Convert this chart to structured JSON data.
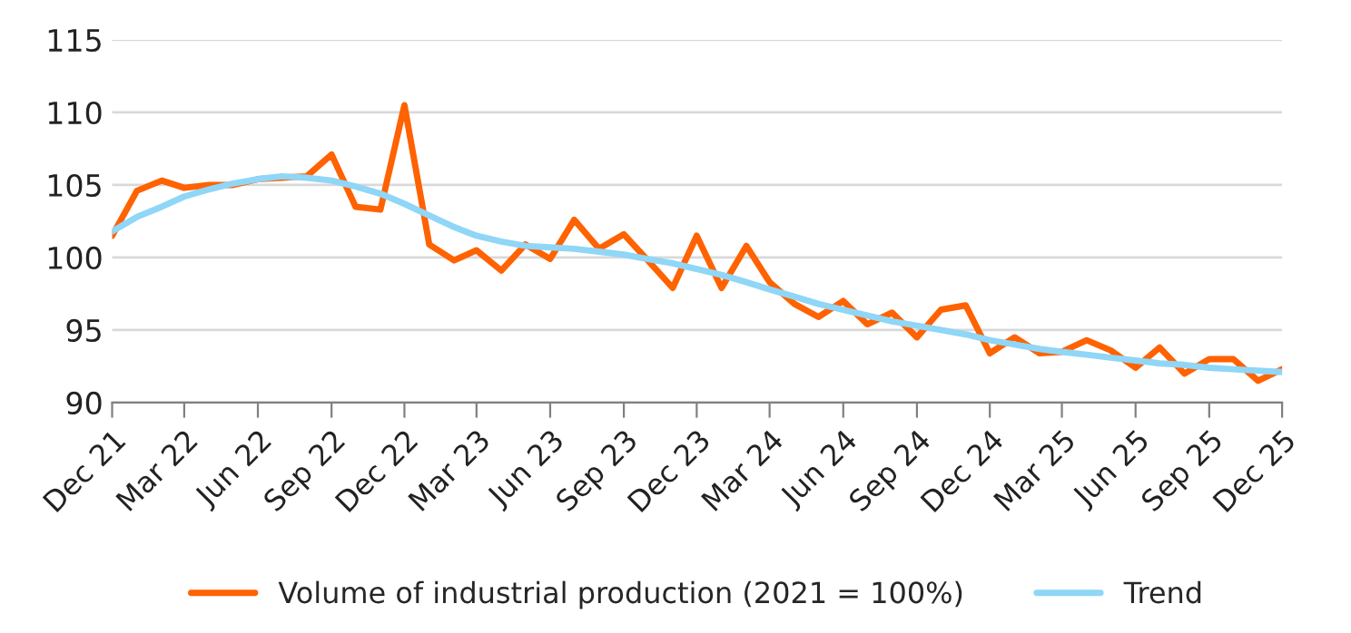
{
  "chart_data": {
    "type": "line",
    "x": [
      "2021-12",
      "2022-01",
      "2022-02",
      "2022-03",
      "2022-04",
      "2022-05",
      "2022-06",
      "2022-07",
      "2022-08",
      "2022-09",
      "2022-10",
      "2022-11",
      "2022-12",
      "2023-01",
      "2023-02",
      "2023-03",
      "2023-04",
      "2023-05",
      "2023-06",
      "2023-07",
      "2023-08",
      "2023-09",
      "2023-10",
      "2023-11",
      "2023-12",
      "2024-01",
      "2024-02",
      "2024-03",
      "2024-04",
      "2024-05",
      "2024-06",
      "2024-07",
      "2024-08",
      "2024-09",
      "2024-10",
      "2024-11",
      "2024-12",
      "2025-01",
      "2025-02",
      "2025-03",
      "2025-04",
      "2025-05",
      "2025-06",
      "2025-07",
      "2025-08",
      "2025-09",
      "2025-10",
      "2025-11",
      "2025-12"
    ],
    "series": [
      {
        "name": "Volume of industrial production (2021 = 100%)",
        "color": "#ff6200",
        "values": [
          101.5,
          104.6,
          105.3,
          104.8,
          105.0,
          105.0,
          105.4,
          105.5,
          105.6,
          107.1,
          103.5,
          103.3,
          110.5,
          100.9,
          99.8,
          100.5,
          99.1,
          100.9,
          99.9,
          102.6,
          100.6,
          101.6,
          99.8,
          97.9,
          101.5,
          97.9,
          100.8,
          98.3,
          96.8,
          95.9,
          97.0,
          95.4,
          96.2,
          94.5,
          96.4,
          96.7,
          93.4,
          94.5,
          93.4,
          93.5,
          94.3,
          93.6,
          92.4,
          93.8,
          92.0,
          93.0,
          93.0,
          91.5,
          92.3
        ]
      },
      {
        "name": "Trend",
        "color": "#8fd6f7",
        "values": [
          101.8,
          102.8,
          103.5,
          104.2,
          104.7,
          105.1,
          105.4,
          105.6,
          105.5,
          105.3,
          104.9,
          104.4,
          103.7,
          102.9,
          102.1,
          101.5,
          101.1,
          100.8,
          100.7,
          100.6,
          100.4,
          100.2,
          99.9,
          99.6,
          99.2,
          98.8,
          98.3,
          97.8,
          97.3,
          96.8,
          96.4,
          96.0,
          95.6,
          95.3,
          95.0,
          94.7,
          94.3,
          94.0,
          93.7,
          93.5,
          93.3,
          93.1,
          92.9,
          92.7,
          92.6,
          92.4,
          92.3,
          92.2,
          92.1
        ]
      }
    ],
    "xlim": [
      "2021-12",
      "2025-12"
    ],
    "xticks": [
      {
        "value": "2021-12",
        "label": "Dec 21"
      },
      {
        "value": "2022-03",
        "label": "Mar 22"
      },
      {
        "value": "2022-06",
        "label": "Jun 22"
      },
      {
        "value": "2022-09",
        "label": "Sep 22"
      },
      {
        "value": "2022-12",
        "label": "Dec 22"
      },
      {
        "value": "2023-03",
        "label": "Mar 23"
      },
      {
        "value": "2023-06",
        "label": "Jun 23"
      },
      {
        "value": "2023-09",
        "label": "Sep 23"
      },
      {
        "value": "2023-12",
        "label": "Dec 23"
      },
      {
        "value": "2024-03",
        "label": "Mar 24"
      },
      {
        "value": "2024-06",
        "label": "Jun 24"
      },
      {
        "value": "2024-09",
        "label": "Sep 24"
      },
      {
        "value": "2024-12",
        "label": "Dec 24"
      },
      {
        "value": "2025-03",
        "label": "Mar 25"
      },
      {
        "value": "2025-06",
        "label": "Jun 25"
      },
      {
        "value": "2025-09",
        "label": "Sep 25"
      },
      {
        "value": "2025-12",
        "label": "Dec 25"
      }
    ],
    "ylim": [
      90,
      115
    ],
    "yticks": [
      90,
      95,
      100,
      105,
      110,
      115
    ],
    "grid": "y",
    "legend": "bottom",
    "marker": "none",
    "line_style": "solid"
  }
}
